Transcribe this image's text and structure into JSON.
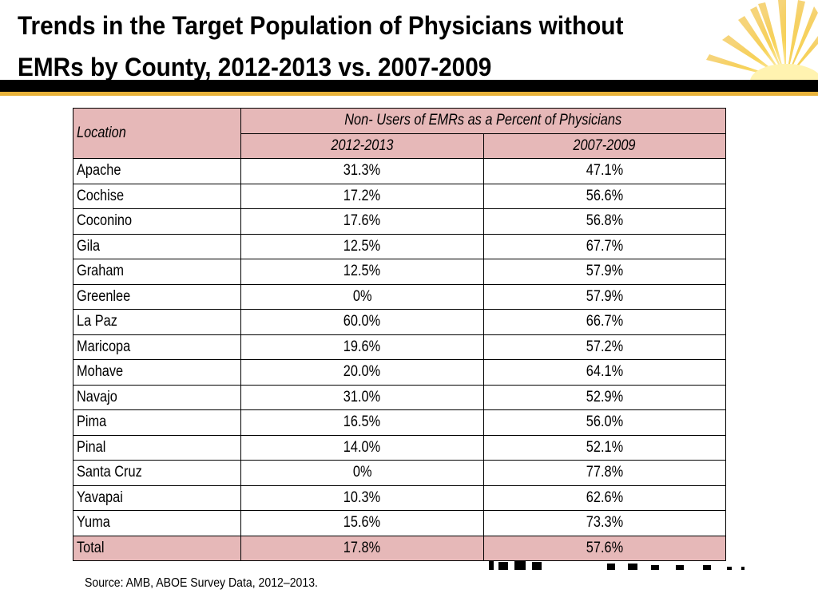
{
  "slide": {
    "title_line1": "Trends in the Target Population of Physicians without",
    "title_line2": "EMRs by County, 2012-2013 vs. 2007-2009",
    "source": "Source: AMB, ABOE Survey Data, 2012–2013."
  },
  "table": {
    "header_location": "Location",
    "header_group": "Non- Users of EMRs as a Percent of Physicians",
    "header_col1": "2012-2013",
    "header_col2": "2007-2009",
    "rows": [
      {
        "location": "Apache",
        "y2012": "31.3%",
        "y2007": "47.1%"
      },
      {
        "location": "Cochise",
        "y2012": "17.2%",
        "y2007": "56.6%"
      },
      {
        "location": "Coconino",
        "y2012": "17.6%",
        "y2007": "56.8%"
      },
      {
        "location": "Gila",
        "y2012": "12.5%",
        "y2007": "67.7%"
      },
      {
        "location": "Graham",
        "y2012": "12.5%",
        "y2007": "57.9%"
      },
      {
        "location": "Greenlee",
        "y2012": "0%",
        "y2007": "57.9%"
      },
      {
        "location": "La Paz",
        "y2012": "60.0%",
        "y2007": "66.7%"
      },
      {
        "location": "Maricopa",
        "y2012": "19.6%",
        "y2007": "57.2%"
      },
      {
        "location": "Mohave",
        "y2012": "20.0%",
        "y2007": "64.1%"
      },
      {
        "location": "Navajo",
        "y2012": "31.0%",
        "y2007": "52.9%"
      },
      {
        "location": "Pima",
        "y2012": "16.5%",
        "y2007": "56.0%"
      },
      {
        "location": "Pinal",
        "y2012": "14.0%",
        "y2007": "52.1%"
      },
      {
        "location": "Santa Cruz",
        "y2012": "0%",
        "y2007": "77.8%"
      },
      {
        "location": "Yavapai",
        "y2012": "10.3%",
        "y2007": "62.6%"
      },
      {
        "location": "Yuma",
        "y2012": "15.6%",
        "y2007": "73.3%"
      }
    ],
    "total": {
      "location": "Total",
      "y2012": "17.8%",
      "y2007": "57.6%"
    }
  },
  "colors": {
    "header_fill": "#e6b8b8",
    "title_bar": "#000000",
    "accent_gold": "#e8b23a",
    "sun_ray": "#f5c842"
  },
  "icons": {
    "sun_logo": "sunburst-icon"
  }
}
